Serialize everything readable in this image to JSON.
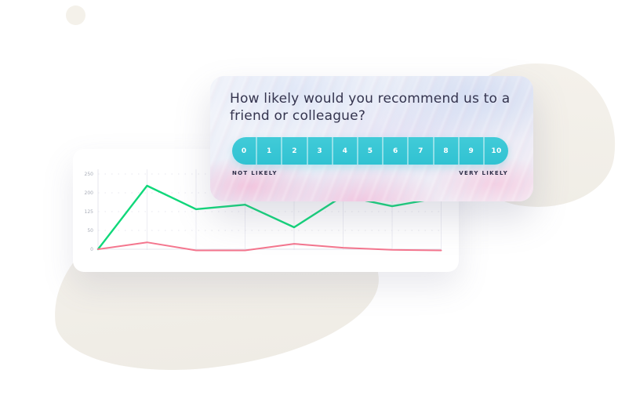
{
  "survey_card": {
    "question": "How likely would you recommend us to a friend or colleague?",
    "scale": {
      "options": [
        "0",
        "1",
        "2",
        "3",
        "4",
        "5",
        "6",
        "7",
        "8",
        "9",
        "10"
      ],
      "left_label": "NOT LIKELY",
      "right_label": "VERY LIKELY",
      "color": "#35c6d4",
      "number_color": "#ffffff"
    }
  },
  "chart_data": {
    "type": "line",
    "title": "",
    "xlabel": "",
    "ylabel": "",
    "ylim": [
      0,
      250
    ],
    "grid": true,
    "legend": "none",
    "y_tick_labels": [
      "250",
      "200",
      "125",
      "50",
      "0"
    ],
    "x": [
      0,
      1,
      2,
      3,
      4,
      5,
      6,
      7
    ],
    "series": [
      {
        "name": "green-series",
        "color": "#10d87a",
        "values": [
          0,
          211,
          133,
          148,
          73,
          177,
          143,
          172
        ]
      },
      {
        "name": "pink-series",
        "color": "#f4768e",
        "values": [
          0,
          23,
          -4,
          -4,
          18,
          5,
          -2,
          -4
        ]
      }
    ]
  },
  "colors": {
    "blob": "#f2efe9",
    "card": "#ffffff",
    "question_text": "#34344e",
    "axis_text": "#a8adb8",
    "gridline": "#ededf3"
  }
}
